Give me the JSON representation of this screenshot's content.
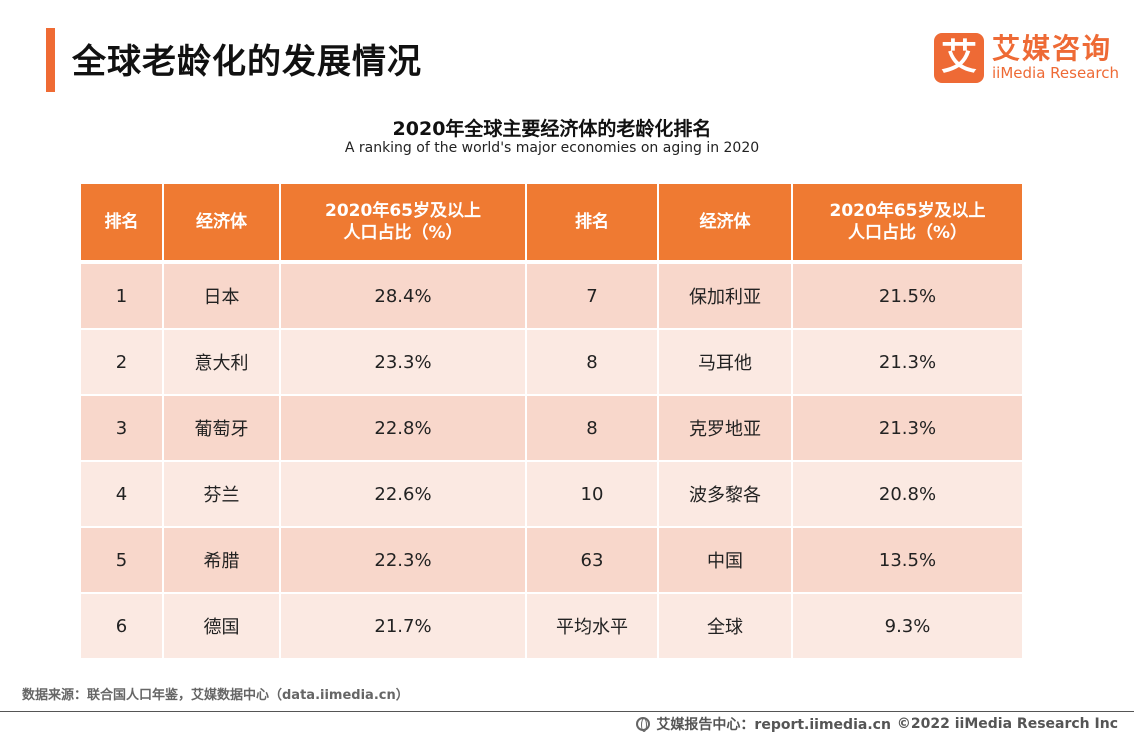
{
  "page": {
    "title": "全球老龄化的发展情况"
  },
  "logo": {
    "mark": "艾",
    "cn": "艾媒咨询",
    "en": "iiMedia Research"
  },
  "table": {
    "title": "2020年全球主要经济体的老龄化排名",
    "subtitle": "A ranking of the world's major economies on aging in 2020",
    "headers": [
      "排名",
      "经济体",
      "2020年65岁及以上\n人口占比（%）",
      "排名",
      "经济体",
      "2020年65岁及以上\n人口占比（%）"
    ],
    "rows": [
      [
        "1",
        "日本",
        "28.4%",
        "7",
        "保加利亚",
        "21.5%"
      ],
      [
        "2",
        "意大利",
        "23.3%",
        "8",
        "马耳他",
        "21.3%"
      ],
      [
        "3",
        "葡萄牙",
        "22.8%",
        "8",
        "克罗地亚",
        "21.3%"
      ],
      [
        "4",
        "芬兰",
        "22.6%",
        "10",
        "波多黎各",
        "20.8%"
      ],
      [
        "5",
        "希腊",
        "22.3%",
        "63",
        "中国",
        "13.5%"
      ],
      [
        "6",
        "德国",
        "21.7%",
        "平均水平",
        "全球",
        "9.3%"
      ]
    ]
  },
  "source": "数据来源：联合国人口年鉴，艾媒数据中心（data.iimedia.cn）",
  "footer": {
    "report_center": "艾媒报告中心：report.iimedia.cn",
    "copyright": "©2022  iiMedia Research  Inc"
  },
  "colors": {
    "accent": "#ef6b34",
    "header_bg": "#ef7a32",
    "row_dark": "#f8d7cb",
    "row_light": "#fbe9e2"
  }
}
